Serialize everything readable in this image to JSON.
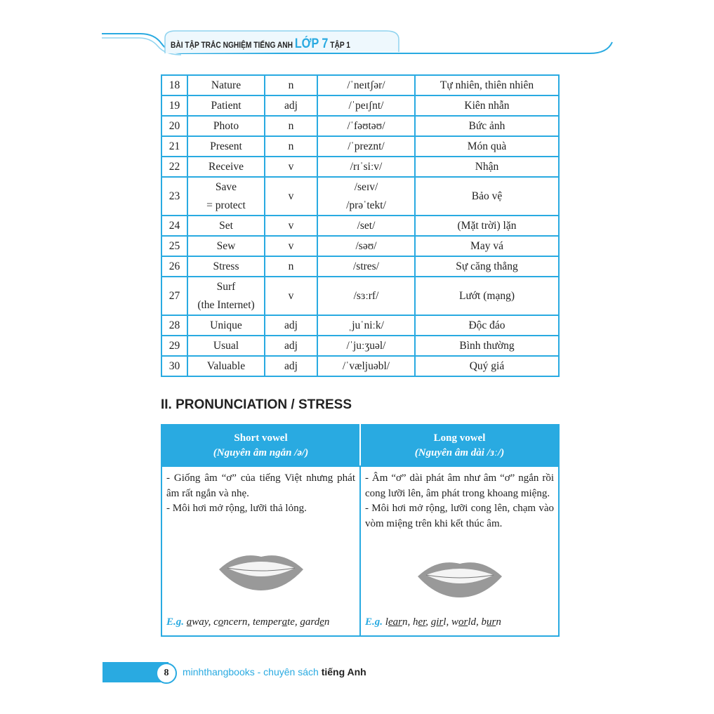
{
  "header": {
    "title": "BÀI TẬP TRẮC NGHIỆM TIẾNG ANH",
    "grade": "LỚP 7",
    "volume": "TẬP 1"
  },
  "vocab": [
    {
      "no": "18",
      "word": "Nature",
      "pos": "n",
      "ipa": "/ˈneɪtʃər/",
      "meaning": "Tự nhiên, thiên nhiên"
    },
    {
      "no": "19",
      "word": "Patient",
      "pos": "adj",
      "ipa": "/ˈpeɪʃnt/",
      "meaning": "Kiên nhẫn"
    },
    {
      "no": "20",
      "word": "Photo",
      "pos": "n",
      "ipa": "/ˈfəʊtəʊ/",
      "meaning": "Bức ảnh"
    },
    {
      "no": "21",
      "word": "Present",
      "pos": "n",
      "ipa": "/ˈpreznt/",
      "meaning": "Món quà"
    },
    {
      "no": "22",
      "word": "Receive",
      "pos": "v",
      "ipa": "/rɪˈsiːv/",
      "meaning": "Nhận"
    },
    {
      "no": "23",
      "word": "Save",
      "word2": "= protect",
      "pos": "v",
      "ipa": "/seɪv/",
      "ipa2": "/prəˈtekt/",
      "meaning": "Bảo vệ"
    },
    {
      "no": "24",
      "word": "Set",
      "pos": "v",
      "ipa": "/set/",
      "meaning": "(Mặt trời) lặn"
    },
    {
      "no": "25",
      "word": "Sew",
      "pos": "v",
      "ipa": "/səʊ/",
      "meaning": "May vá"
    },
    {
      "no": "26",
      "word": "Stress",
      "pos": "n",
      "ipa": "/stres/",
      "meaning": "Sự căng thẳng"
    },
    {
      "no": "27",
      "word": "Surf",
      "word2": "(the Internet)",
      "pos": "v",
      "ipa": "/sɜːrf/",
      "meaning": "Lướt (mạng)"
    },
    {
      "no": "28",
      "word": "Unique",
      "pos": "adj",
      "ipa": "ˌjuˈniːk/",
      "meaning": "Độc đáo"
    },
    {
      "no": "29",
      "word": "Usual",
      "pos": "adj",
      "ipa": "/ˈjuːʒuəl/",
      "meaning": "Bình thường"
    },
    {
      "no": "30",
      "word": "Valuable",
      "pos": "adj",
      "ipa": "/ˈvæljuəbl/",
      "meaning": "Quý giá"
    }
  ],
  "section": {
    "title": "II. PRONUNCIATION / STRESS"
  },
  "pron": {
    "short": {
      "title": "Short vowel",
      "subtitle": "(Nguyên âm ngắn /ə/)",
      "lines": [
        "- Giống âm “ơ” của tiếng Việt nhưng phát âm rất ngắn và nhẹ.",
        "- Môi hơi mở rộng, lưỡi thả lỏng."
      ],
      "eg_label": "E.g.",
      "examples": [
        [
          "",
          "a",
          "way, "
        ],
        [
          "c",
          "o",
          "ncern, "
        ],
        [
          "temper",
          "a",
          "te, "
        ],
        [
          "gard",
          "e",
          "n"
        ]
      ]
    },
    "long": {
      "title": "Long vowel",
      "subtitle": "(Nguyên âm dài /ɜː/)",
      "lines": [
        "- Âm “ơ” dài phát âm như âm “ơ” ngắn rồi cong lưỡi lên, âm phát trong khoang miệng.",
        "- Môi hơi mở rộng, lưỡi cong lên, chạm vào vòm miệng trên khi kết thúc âm."
      ],
      "eg_label": "E.g.",
      "examples": [
        [
          "l",
          "ear",
          "n, "
        ],
        [
          "h",
          "er",
          ", "
        ],
        [
          "g",
          "ir",
          "l, "
        ],
        [
          "w",
          "or",
          "ld, "
        ],
        [
          "b",
          "ur",
          "n"
        ]
      ]
    }
  },
  "footer": {
    "page": "8",
    "brand": "minhthangbooks - chuyên sách",
    "brand_bold": "tiếng Anh"
  },
  "colors": {
    "accent": "#29aae1"
  }
}
